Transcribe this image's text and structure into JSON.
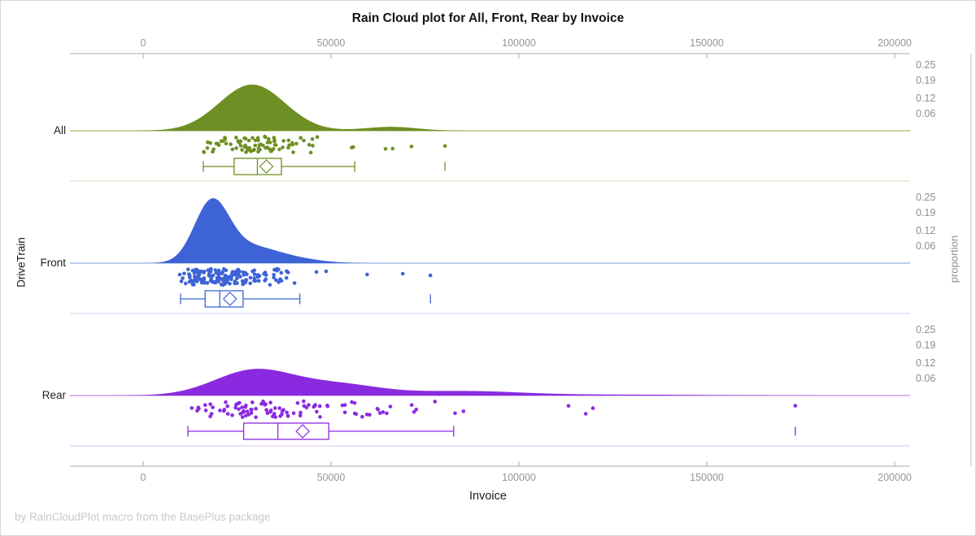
{
  "title": "Rain Cloud plot for All, Front, Rear by Invoice",
  "footer": "by RainCloudPlot macro from the BasePlus package",
  "x_axis": {
    "label": "Invoice",
    "tick_values": [
      0,
      50000,
      100000,
      150000,
      200000
    ],
    "tick_labels": [
      "0",
      "50000",
      "100000",
      "150000",
      "200000"
    ]
  },
  "left_axis": {
    "label": "DriveTrain"
  },
  "right_axis": {
    "label": "proportion",
    "tick_values": [
      0.25,
      0.19,
      0.12,
      0.06
    ],
    "tick_labels": [
      "0.25",
      "0.19",
      "0.12",
      "0.06"
    ]
  },
  "chart_data": {
    "type": "raincloud",
    "x_domain": [
      0,
      200000
    ],
    "xlabel": "Invoice",
    "ylabel_left": "DriveTrain",
    "ylabel_right": "proportion",
    "legend": "none",
    "categories": [
      "All",
      "Front",
      "Rear"
    ],
    "axis_color": "#a9a9a9",
    "frame_color": "#b8b8b8",
    "groups": [
      {
        "label": "All",
        "color": "#6e8f23",
        "baseline_color": "#b7c47e",
        "separator_color": "#dde5c3",
        "density_peak_proportion": 0.18,
        "density_components": [
          {
            "mean": 29000,
            "sd": 8700,
            "weight": 1.0
          },
          {
            "mean": 66000,
            "sd": 7000,
            "weight": 0.085
          }
        ],
        "box": {
          "whisker_low": 16000,
          "q1": 24200,
          "median": 30400,
          "q3": 36800,
          "whisker_high": 56300,
          "mean": 32800,
          "far_outlier": 80323
        },
        "rain": {
          "count": 84,
          "seed": 7,
          "range": [
            15800,
            50500
          ],
          "outlier_points": [
            55500,
            55900,
            64500,
            66400,
            71400,
            80323
          ]
        }
      },
      {
        "label": "Front",
        "color": "#3e63d6",
        "baseline_color": "#a9bfe8",
        "separator_color": "#cdd9f2",
        "density_peak_proportion": 0.253,
        "density_components": [
          {
            "mean": 18200,
            "sd": 4600,
            "weight": 1.0
          },
          {
            "mean": 28500,
            "sd": 7500,
            "weight": 0.28
          },
          {
            "mean": 42000,
            "sd": 6500,
            "weight": 0.05
          }
        ],
        "box": {
          "whisker_low": 9950,
          "q1": 16500,
          "median": 20400,
          "q3": 26600,
          "whisker_high": 41700,
          "mean": 23100,
          "far_outlier": 76450
        },
        "rain": {
          "count": 168,
          "seed": 13,
          "range": [
            9500,
            44500
          ],
          "outlier_points": [
            46100,
            48700,
            59600,
            69100,
            76450
          ]
        }
      },
      {
        "label": "Rear",
        "color": "#8a2ae0",
        "baseline_color": "#c89de9",
        "separator_color": "#e3cef5",
        "density_peak_proportion": 0.104,
        "density_components": [
          {
            "mean": 29500,
            "sd": 10500,
            "weight": 1.0
          },
          {
            "mean": 52000,
            "sd": 11000,
            "weight": 0.42
          },
          {
            "mean": 85000,
            "sd": 15000,
            "weight": 0.17
          },
          {
            "mean": 125000,
            "sd": 22000,
            "weight": 0.035
          }
        ],
        "box": {
          "whisker_low": 11900,
          "q1": 26750,
          "median": 35870,
          "q3": 49400,
          "whisker_high": 82640,
          "mean": 42450,
          "far_outlier": 173560
        },
        "rain": {
          "count": 100,
          "seed": 21,
          "range": [
            12000,
            90000
          ],
          "outlier_points": [
            113200,
            117800,
            119700,
            173560
          ]
        }
      }
    ]
  }
}
